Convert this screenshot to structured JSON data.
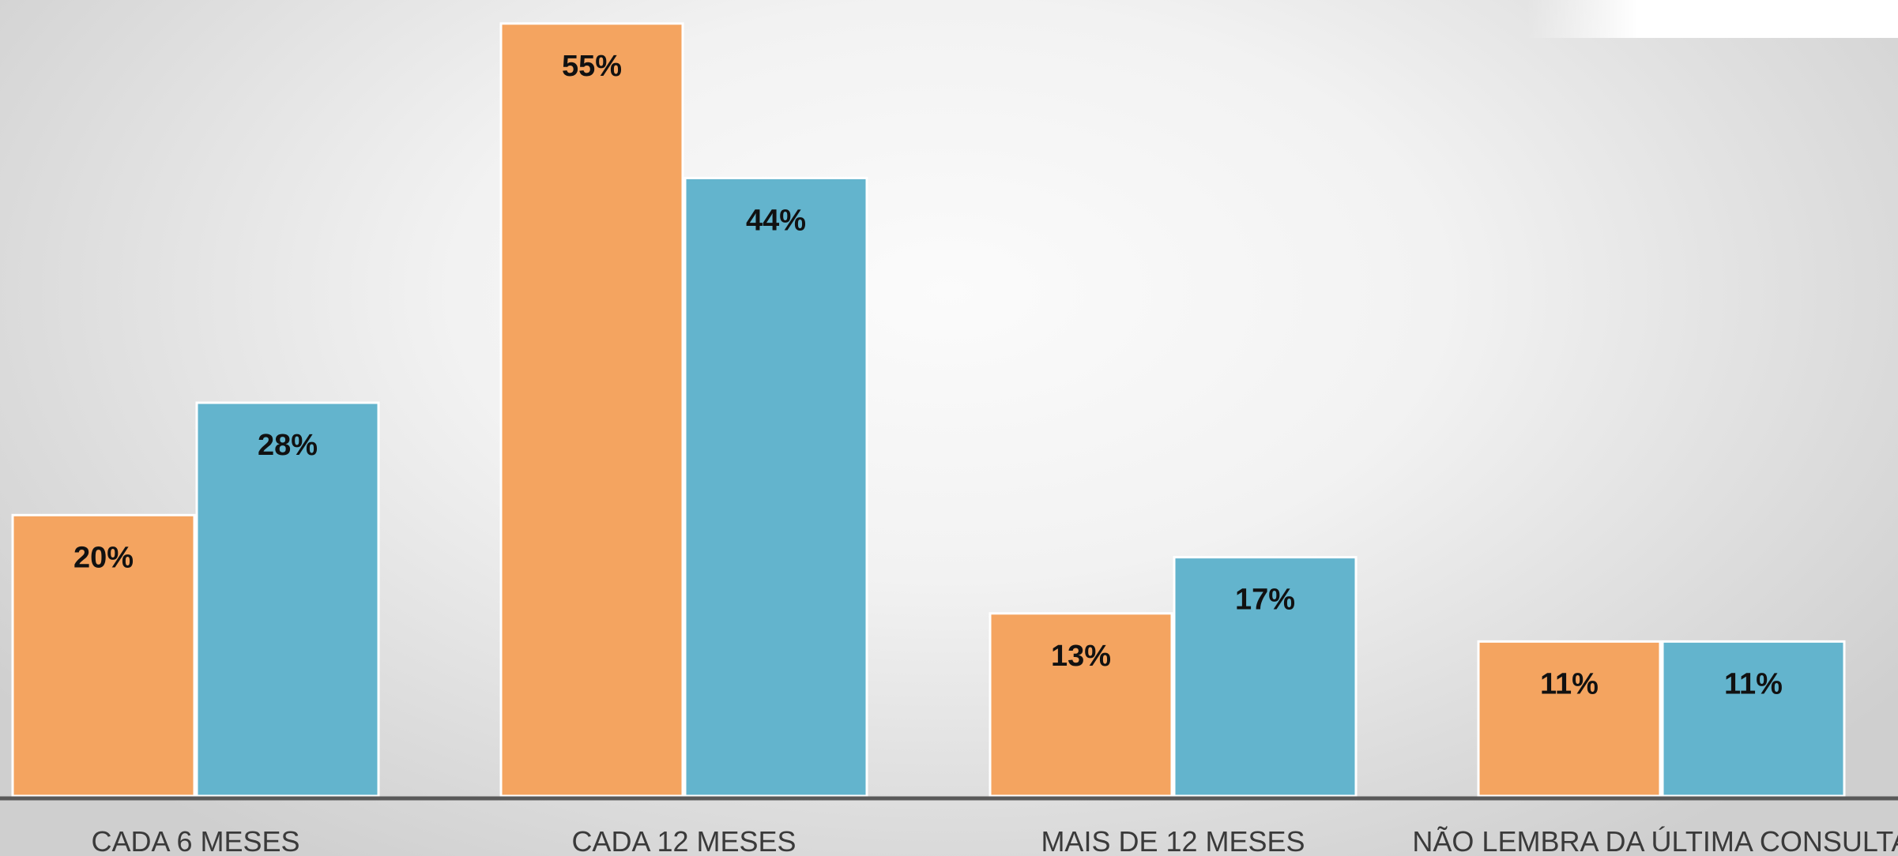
{
  "chart_data": {
    "type": "bar",
    "categories": [
      "CADA 6 MESES",
      "CADA 12 MESES",
      "MAIS DE 12 MESES",
      "NÃO LEMBRA DA ÚLTIMA CONSULTA"
    ],
    "series": [
      {
        "values": [
          20,
          55,
          13,
          11
        ],
        "color": "#f4a460"
      },
      {
        "values": [
          28,
          44,
          17,
          11
        ],
        "color": "#63b4cd"
      }
    ],
    "data_labels": [
      [
        "20%",
        "55%",
        "13%",
        "11%"
      ],
      [
        "28%",
        "44%",
        "17%",
        "11%"
      ]
    ],
    "value_suffix": "%",
    "ylim": [
      0,
      56
    ],
    "grid": false,
    "legend": "none",
    "axis_color": "#595959"
  }
}
